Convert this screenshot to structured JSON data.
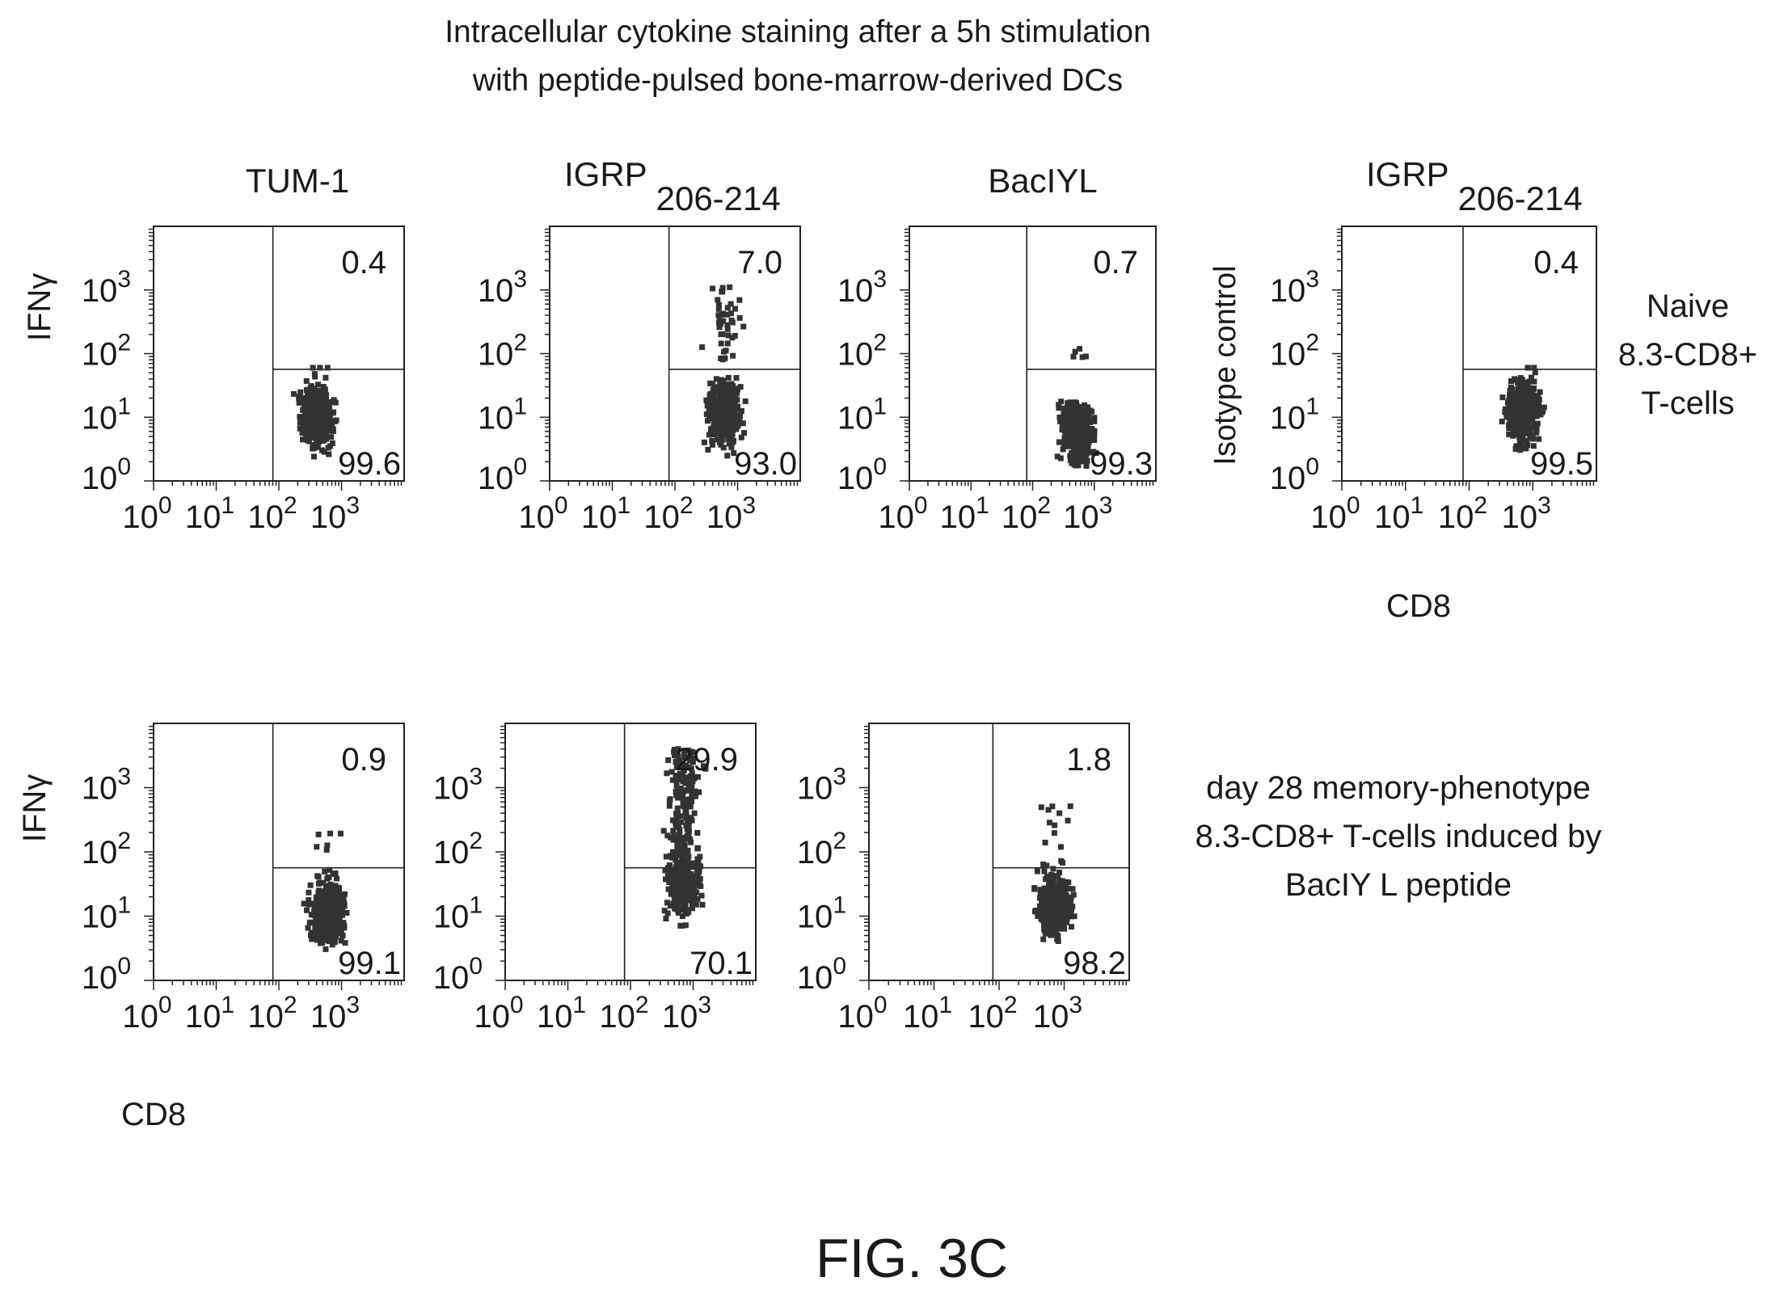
{
  "figure": {
    "title_line1": "Intracellular cytokine staining after a 5h stimulation",
    "title_line2": "with peptide-pulsed bone-marrow-derived DCs",
    "caption": "FIG. 3C"
  },
  "columns": {
    "col1": {
      "label": "TUM-1"
    },
    "col2": {
      "label": "IGRP",
      "sub": "206-214"
    },
    "col3": {
      "label": "BacIYL"
    },
    "col4": {
      "label": "IGRP",
      "sub": "206-214"
    }
  },
  "rows": {
    "row1_label": [
      "Naive",
      "8.3-CD8+",
      "T-cells"
    ],
    "row2_label": [
      "day 28 memory-phenotype",
      "8.3-CD8+ T-cells induced by",
      "BacIY L peptide"
    ]
  },
  "axes": {
    "x_title": "CD8",
    "y_title_ifn": "IFNγ",
    "y_title_iso": "Isotype control",
    "ticks": [
      "0",
      "1",
      "2",
      "3"
    ],
    "tick_base": "10"
  },
  "colors": {
    "ink": "#1a1a1a",
    "dots": "#333333",
    "frame": "#222222"
  },
  "chart_data": [
    {
      "type": "scatter",
      "title": "TUM-1",
      "xlabel": "",
      "ylabel": "IFNγ",
      "x_scale": "log",
      "y_scale": "log",
      "xlim": [
        1,
        10000
      ],
      "ylim": [
        1,
        10000
      ],
      "quadrant_upper_right": 0.4,
      "quadrant_lower_right": 99.6,
      "cluster": {
        "x_center": 400,
        "y_center": 10,
        "max_y": 60
      }
    },
    {
      "type": "scatter",
      "title": "IGRP206-214",
      "xlabel": "",
      "ylabel": "",
      "x_scale": "log",
      "y_scale": "log",
      "xlim": [
        1,
        10000
      ],
      "ylim": [
        1,
        10000
      ],
      "quadrant_upper_right": 7.0,
      "quadrant_lower_right": 93.0,
      "cluster": {
        "x_center": 600,
        "y_center": 12,
        "max_y": 1200
      }
    },
    {
      "type": "scatter",
      "title": "BacIYL",
      "xlabel": "",
      "ylabel": "",
      "x_scale": "log",
      "y_scale": "log",
      "xlim": [
        1,
        10000
      ],
      "ylim": [
        1,
        10000
      ],
      "quadrant_upper_right": 0.7,
      "quadrant_lower_right": 99.3,
      "cluster": {
        "x_center": 500,
        "y_center": 6,
        "max_y": 150
      }
    },
    {
      "type": "scatter",
      "title": "IGRP206-214",
      "xlabel": "CD8",
      "ylabel": "Isotype control",
      "x_scale": "log",
      "y_scale": "log",
      "xlim": [
        1,
        10000
      ],
      "ylim": [
        1,
        10000
      ],
      "quadrant_upper_right": 0.4,
      "quadrant_lower_right": 99.5,
      "cluster": {
        "x_center": 700,
        "y_center": 12,
        "max_y": 60
      }
    },
    {
      "type": "scatter",
      "title": "",
      "xlabel": "CD8",
      "ylabel": "IFNγ",
      "x_scale": "log",
      "y_scale": "log",
      "xlim": [
        1,
        10000
      ],
      "ylim": [
        1,
        10000
      ],
      "quadrant_upper_right": 0.9,
      "quadrant_lower_right": 99.1,
      "cluster": {
        "x_center": 600,
        "y_center": 12,
        "max_y": 200
      }
    },
    {
      "type": "scatter",
      "title": "",
      "xlabel": "",
      "ylabel": "",
      "x_scale": "log",
      "y_scale": "log",
      "xlim": [
        1,
        10000
      ],
      "ylim": [
        1,
        10000
      ],
      "quadrant_upper_right": 29.9,
      "quadrant_lower_right": 70.1,
      "cluster": {
        "x_center": 700,
        "y_center": 30,
        "max_y": 4000
      }
    },
    {
      "type": "scatter",
      "title": "",
      "xlabel": "",
      "ylabel": "",
      "x_scale": "log",
      "y_scale": "log",
      "xlim": [
        1,
        10000
      ],
      "ylim": [
        1,
        10000
      ],
      "quadrant_upper_right": 1.8,
      "quadrant_lower_right": 98.2,
      "cluster": {
        "x_center": 700,
        "y_center": 15,
        "max_y": 1000
      }
    }
  ]
}
